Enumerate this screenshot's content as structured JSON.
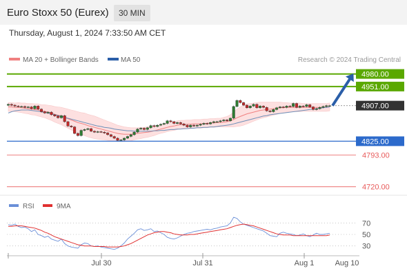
{
  "header": {
    "title": "Euro Stoxx 50 (Eurex)",
    "interval": "30 MIN",
    "datetime": "Thursday, August 1, 2024 7:33:50 AM CET"
  },
  "legend": {
    "ma20": "MA 20 + Bollinger Bands",
    "ma50": "MA 50",
    "credit": "Research © 2024 Trading Central",
    "rsi": "RSI",
    "rsi_ma": "9MA"
  },
  "colors": {
    "resistance": "#5aa800",
    "support": "#2c6acb",
    "weak_support": "#e85a5a",
    "current": "#333333",
    "bollinger_fill": "#fde0e0",
    "ma20": "#f08080",
    "ma50": "#6d8fb8",
    "candle_up": "#2e7d32",
    "candle_down": "#c62828",
    "rsi": "#6a8fd8",
    "rsi_ma": "#e03030",
    "arrow": "#2a5ea8"
  },
  "chart_data": [
    {
      "type": "candlestick",
      "title": "Euro Stoxx 50 (Eurex) 30 MIN",
      "ylim": [
        4710,
        4992
      ],
      "x_ticks": [
        "Jul 30",
        "Jul 31",
        "Aug 1",
        "Aug 10"
      ],
      "levels": [
        {
          "label": "4980.00",
          "value": 4980,
          "kind": "resistance"
        },
        {
          "label": "4951.00",
          "value": 4951,
          "kind": "resistance"
        },
        {
          "label": "4907.00",
          "value": 4907,
          "kind": "current"
        },
        {
          "label": "4825.00",
          "value": 4825,
          "kind": "support"
        },
        {
          "label": "4793.00",
          "value": 4793,
          "kind": "weak_support"
        },
        {
          "label": "4720.00",
          "value": 4720,
          "kind": "weak_support"
        }
      ],
      "target_arrow": {
        "from": 4907,
        "to": 4980
      },
      "close": [
        4910,
        4908,
        4906,
        4905,
        4905,
        4903,
        4904,
        4900,
        4906,
        4899,
        4893,
        4890,
        4892,
        4886,
        4883,
        4879,
        4884,
        4870,
        4860,
        4858,
        4843,
        4838,
        4850,
        4852,
        4854,
        4848,
        4846,
        4847,
        4846,
        4844,
        4840,
        4836,
        4832,
        4827,
        4828,
        4832,
        4836,
        4840,
        4846,
        4853,
        4855,
        4852,
        4856,
        4861,
        4859,
        4862,
        4864,
        4866,
        4872,
        4870,
        4866,
        4868,
        4865,
        4862,
        4858,
        4862,
        4860,
        4862,
        4864,
        4866,
        4865,
        4868,
        4870,
        4870,
        4872,
        4874,
        4872,
        4878,
        4905,
        4919,
        4914,
        4908,
        4902,
        4906,
        4910,
        4902,
        4906,
        4903,
        4895,
        4893,
        4898,
        4902,
        4904,
        4903,
        4906,
        4905,
        4912,
        4903,
        4906,
        4905,
        4909,
        4904,
        4898,
        4900,
        4903,
        4905,
        4907,
        4907
      ],
      "ma20": [
        4904,
        4904,
        4903,
        4903,
        4902,
        4901,
        4900,
        4899,
        4898,
        4897,
        4895,
        4894,
        4892,
        4890,
        4887,
        4885,
        4883,
        4880,
        4877,
        4874,
        4871,
        4868,
        4866,
        4864,
        4861,
        4859,
        4857,
        4855,
        4853,
        4851,
        4849,
        4847,
        4845,
        4843,
        4842,
        4841,
        4841,
        4841,
        4842,
        4843,
        4844,
        4845,
        4846,
        4847,
        4849,
        4851,
        4853,
        4855,
        4857,
        4859,
        4860,
        4862,
        4863,
        4863,
        4864,
        4864,
        4865,
        4865,
        4865,
        4866,
        4866,
        4867,
        4867,
        4868,
        4868,
        4869,
        4870,
        4872,
        4875,
        4879,
        4882,
        4885,
        4888,
        4890,
        4892,
        4894,
        4896,
        4897,
        4898,
        4899,
        4900,
        4901,
        4902,
        4902,
        4903,
        4903,
        4903,
        4903,
        4903,
        4903,
        4903,
        4903,
        4903,
        4903,
        4903,
        4903,
        4903,
        4904
      ],
      "ma50": [
        4890,
        4893,
        4895,
        4896,
        4897,
        4897,
        4897,
        4896,
        4895,
        4894,
        4893,
        4891,
        4890,
        4888,
        4886,
        4884,
        4882,
        4880,
        4878,
        4876,
        4874,
        4872,
        4870,
        4868,
        4866,
        4864,
        4862,
        4860,
        4859,
        4857,
        4856,
        4855,
        4853,
        4852,
        4851,
        4850,
        4849,
        4849,
        4848,
        4848,
        4848,
        4848,
        4848,
        4848,
        4849,
        4849,
        4850,
        4850,
        4851,
        4852,
        4852,
        4853,
        4853,
        4854,
        4854,
        4855,
        4855,
        4856,
        4856,
        4857,
        4857,
        4858,
        4858,
        4859,
        4860,
        4861,
        4862,
        4863,
        4865,
        4867,
        4869,
        4871,
        4873,
        4875,
        4877,
        4879,
        4881,
        4883,
        4884,
        4886,
        4887,
        4888,
        4889,
        4890,
        4891,
        4892,
        4893,
        4894,
        4895,
        4896,
        4897,
        4898,
        4899,
        4900,
        4901,
        4902,
        4903,
        4904
      ],
      "bb_half_width": [
        10,
        10,
        10,
        11,
        11,
        12,
        12,
        13,
        13,
        14,
        14,
        15,
        16,
        17,
        18,
        19,
        20,
        21,
        22,
        23,
        24,
        25,
        25,
        26,
        26,
        26,
        26,
        25,
        24,
        23,
        22,
        21,
        20,
        19,
        18,
        17,
        16,
        15,
        14,
        13,
        13,
        12,
        12,
        11,
        11,
        10,
        10,
        10,
        10,
        10,
        10,
        10,
        10,
        10,
        10,
        10,
        10,
        10,
        10,
        10,
        10,
        10,
        10,
        10,
        10,
        11,
        12,
        14,
        17,
        20,
        22,
        23,
        23,
        22,
        21,
        20,
        19,
        18,
        17,
        16,
        15,
        14,
        13,
        12,
        11,
        10,
        10,
        10,
        10,
        9,
        9,
        9,
        9,
        9,
        9,
        9,
        9,
        9
      ]
    },
    {
      "type": "line",
      "title": "RSI",
      "ylim": [
        20,
        80
      ],
      "y_ticks": [
        70,
        50,
        30
      ],
      "series": [
        {
          "name": "RSI",
          "values": [
            67,
            66,
            68,
            64,
            62,
            63,
            60,
            55,
            58,
            50,
            48,
            45,
            47,
            42,
            40,
            38,
            42,
            34,
            30,
            28,
            27,
            26,
            32,
            35,
            34,
            30,
            29,
            30,
            28,
            27,
            26,
            25,
            24,
            26,
            30,
            35,
            42,
            47,
            52,
            58,
            60,
            57,
            58,
            60,
            55,
            56,
            53,
            50,
            45,
            43,
            42,
            44,
            47,
            50,
            52,
            53,
            55,
            56,
            57,
            58,
            59,
            58,
            60,
            61,
            63,
            64,
            65,
            70,
            80,
            78,
            72,
            68,
            66,
            64,
            62,
            60,
            58,
            56,
            52,
            48,
            47,
            46,
            52,
            54,
            52,
            51,
            50,
            48,
            49,
            51,
            48,
            46,
            49,
            52,
            50,
            50,
            51,
            52
          ]
        },
        {
          "name": "9MA",
          "values": [
            64,
            64,
            65,
            65,
            65,
            64,
            63,
            62,
            61,
            59,
            57,
            54,
            52,
            49,
            46,
            44,
            42,
            40,
            38,
            36,
            34,
            32,
            31,
            30,
            30,
            30,
            29,
            29,
            29,
            29,
            28,
            28,
            28,
            28,
            29,
            30,
            32,
            34,
            37,
            40,
            43,
            46,
            49,
            51,
            53,
            54,
            55,
            55,
            54,
            53,
            51,
            50,
            49,
            49,
            49,
            50,
            50,
            51,
            52,
            53,
            54,
            55,
            56,
            57,
            58,
            59,
            60,
            62,
            64,
            66,
            67,
            68,
            67,
            66,
            65,
            63,
            61,
            59,
            57,
            55,
            53,
            51,
            50,
            49,
            49,
            49,
            48,
            48,
            48,
            48,
            48,
            48,
            48,
            48,
            48,
            48,
            48,
            49
          ]
        }
      ]
    }
  ]
}
